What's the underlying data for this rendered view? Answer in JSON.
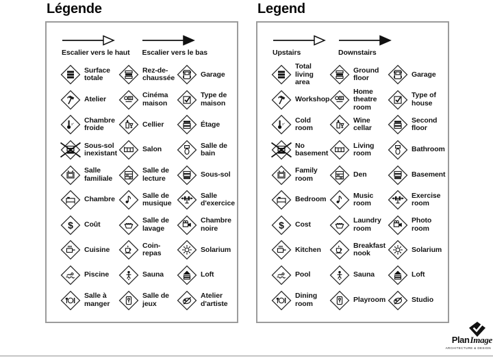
{
  "panels": [
    {
      "id": "french",
      "title": "Légende",
      "arrows": [
        {
          "label": "Escalier vers le haut",
          "style": "outline"
        },
        {
          "label": "Escalier vers le bas",
          "style": "filled"
        }
      ],
      "items": [
        {
          "icon": "total-living-area",
          "label": "Surface totale"
        },
        {
          "icon": "ground-floor",
          "label": "Rez-de-chaussée"
        },
        {
          "icon": "garage",
          "label": "Garage"
        },
        {
          "icon": "workshop",
          "label": "Atelier"
        },
        {
          "icon": "home-theatre",
          "label": "Cinéma maison"
        },
        {
          "icon": "type-of-house",
          "label": "Type de maison"
        },
        {
          "icon": "cold-room",
          "label": "Chambre froide"
        },
        {
          "icon": "wine-cellar",
          "label": "Cellier"
        },
        {
          "icon": "second-floor",
          "label": "Étage"
        },
        {
          "icon": "no-basement",
          "label": "Sous-sol inexistant"
        },
        {
          "icon": "living-room",
          "label": "Salon"
        },
        {
          "icon": "bathroom",
          "label": "Salle de bain"
        },
        {
          "icon": "family-room",
          "label": "Salle familiale"
        },
        {
          "icon": "den",
          "label": "Salle de lecture"
        },
        {
          "icon": "basement",
          "label": "Sous-sol"
        },
        {
          "icon": "bedroom",
          "label": "Chambre"
        },
        {
          "icon": "music-room",
          "label": "Salle de musique"
        },
        {
          "icon": "exercise-room",
          "label": "Salle d'exercice"
        },
        {
          "icon": "cost",
          "label": "Coût"
        },
        {
          "icon": "laundry-room",
          "label": "Salle de lavage"
        },
        {
          "icon": "photo-room",
          "label": "Chambre noire"
        },
        {
          "icon": "kitchen",
          "label": "Cuisine"
        },
        {
          "icon": "breakfast-nook",
          "label": "Coin-repas"
        },
        {
          "icon": "solarium",
          "label": "Solarium"
        },
        {
          "icon": "pool",
          "label": "Piscine"
        },
        {
          "icon": "sauna",
          "label": "Sauna"
        },
        {
          "icon": "loft",
          "label": "Loft"
        },
        {
          "icon": "dining-room",
          "label": "Salle à manger"
        },
        {
          "icon": "playroom",
          "label": "Salle de jeux"
        },
        {
          "icon": "studio",
          "label": "Atelier d'artiste"
        }
      ]
    },
    {
      "id": "english",
      "title": "Legend",
      "arrows": [
        {
          "label": "Upstairs",
          "style": "outline"
        },
        {
          "label": "Downstairs",
          "style": "filled"
        }
      ],
      "items": [
        {
          "icon": "total-living-area",
          "label": "Total living area"
        },
        {
          "icon": "ground-floor",
          "label": "Ground floor"
        },
        {
          "icon": "garage",
          "label": "Garage"
        },
        {
          "icon": "workshop",
          "label": "Workshop"
        },
        {
          "icon": "home-theatre",
          "label": "Home theatre room"
        },
        {
          "icon": "type-of-house",
          "label": "Type of house"
        },
        {
          "icon": "cold-room",
          "label": "Cold room"
        },
        {
          "icon": "wine-cellar",
          "label": "Wine cellar"
        },
        {
          "icon": "second-floor",
          "label": "Second floor"
        },
        {
          "icon": "no-basement",
          "label": "No basement"
        },
        {
          "icon": "living-room",
          "label": "Living room"
        },
        {
          "icon": "bathroom",
          "label": "Bathroom"
        },
        {
          "icon": "family-room",
          "label": "Family room"
        },
        {
          "icon": "den",
          "label": "Den"
        },
        {
          "icon": "basement",
          "label": "Basement"
        },
        {
          "icon": "bedroom",
          "label": "Bedroom"
        },
        {
          "icon": "music-room",
          "label": "Music room"
        },
        {
          "icon": "exercise-room",
          "label": "Exercise room"
        },
        {
          "icon": "cost",
          "label": "Cost"
        },
        {
          "icon": "laundry-room",
          "label": "Laundry room"
        },
        {
          "icon": "photo-room",
          "label": "Photo room"
        },
        {
          "icon": "kitchen",
          "label": "Kitchen"
        },
        {
          "icon": "breakfast-nook",
          "label": "Breakfast nook"
        },
        {
          "icon": "solarium",
          "label": "Solarium"
        },
        {
          "icon": "pool",
          "label": "Pool"
        },
        {
          "icon": "sauna",
          "label": "Sauna"
        },
        {
          "icon": "loft",
          "label": "Loft"
        },
        {
          "icon": "dining-room",
          "label": "Dining room"
        },
        {
          "icon": "playroom",
          "label": "Playroom"
        },
        {
          "icon": "studio",
          "label": "Studio"
        }
      ]
    }
  ],
  "logo": {
    "brand_bold": "Plan",
    "brand_italic": "Image",
    "tagline": "ARCHITECTURE & DESIGN"
  },
  "colors": {
    "ink": "#111111",
    "panel_border": "#9b9b9b",
    "bottom_rule": "#c4c4c4"
  }
}
